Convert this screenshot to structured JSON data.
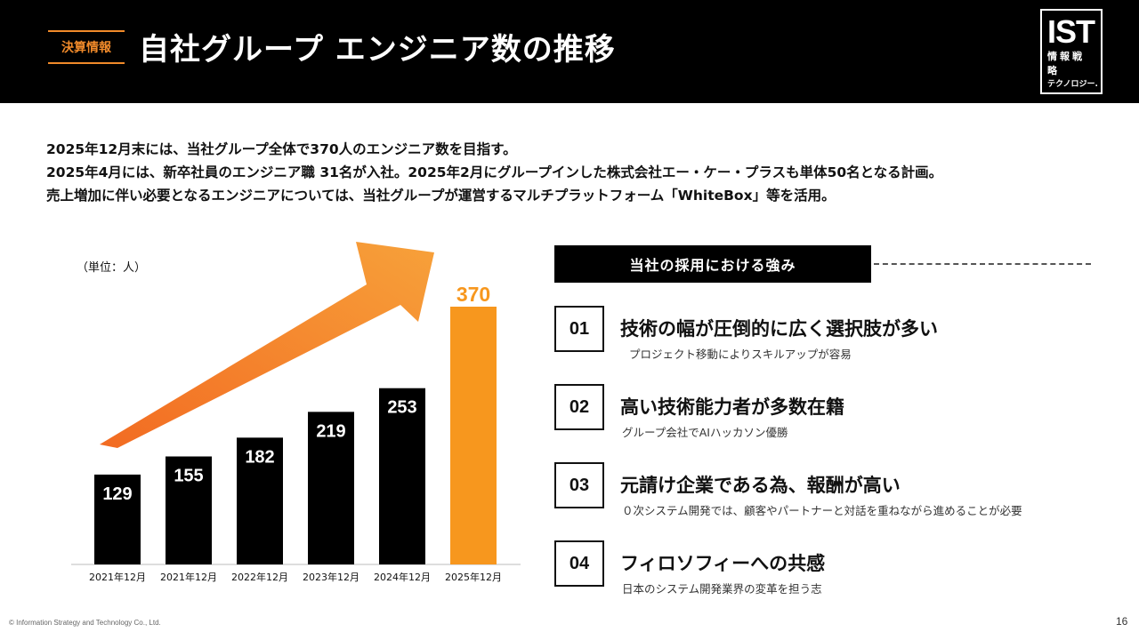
{
  "header": {
    "tag": "決算情報",
    "title": "自社グループ エンジニア数の推移",
    "logo": {
      "main": "IST",
      "sub1": "情報戦略",
      "sub2": "テクノロジー."
    }
  },
  "intro": [
    "2025年12月末には、当社グループ全体で370人のエンジニア数を目指す。",
    "2025年4月には、新卒社員のエンジニア職 31名が入社。2025年2月にグループインした株式会社エー・ケー・プラスも単体50名となる計画。",
    "売上増加に伴い必要となるエンジニアについては、当社グループが運営するマルチプラットフォーム「WhiteBox」等を活用。"
  ],
  "chart_unit": "（単位：人）",
  "chart_data": {
    "type": "bar",
    "categories": [
      "2021年12月",
      "2021年12月",
      "2022年12月",
      "2023年12月",
      "2024年12月",
      "2025年12月"
    ],
    "values": [
      129,
      155,
      182,
      219,
      253,
      370
    ],
    "colors": [
      "#000000",
      "#000000",
      "#000000",
      "#000000",
      "#000000",
      "#f7971e"
    ],
    "title": "",
    "xlabel": "",
    "ylabel": "",
    "ylim": [
      0,
      370
    ],
    "grid": false,
    "arrow": {
      "color_start": "#f26b22",
      "color_end": "#f7a13a"
    }
  },
  "strengths": {
    "heading": "当社の採用における強み",
    "items": [
      {
        "num": "01",
        "title": "技術の幅が圧倒的に広く選択肢が多い",
        "sub": "プロジェクト移動によりスキルアップが容易"
      },
      {
        "num": "02",
        "title": "高い技術能力者が多数在籍",
        "sub": "グループ会社でAIハッカソン優勝"
      },
      {
        "num": "03",
        "title": "元請け企業である為、報酬が高い",
        "sub": "０次システム開発では、顧客やパートナーと対話を重ねながら進めることが必要"
      },
      {
        "num": "04",
        "title": "フィロソフィーへの共感",
        "sub": "日本のシステム開発業界の変革を担う志"
      }
    ]
  },
  "footer": {
    "copyright": "© Information Strategy and Technology Co., Ltd.",
    "page": "16"
  }
}
